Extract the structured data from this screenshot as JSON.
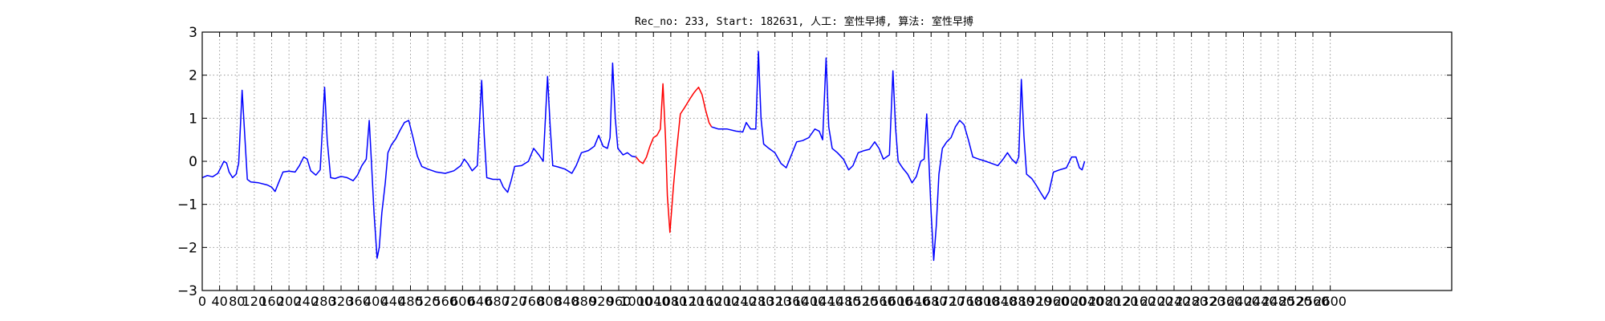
{
  "chart_data": {
    "type": "line",
    "title": "Rec_no: 233, Start: 182631, 人工: 室性早搏, 算法: 室性早搏",
    "xlabel": "",
    "ylabel": "",
    "xlim": [
      0,
      2880
    ],
    "ylim": [
      -3,
      3
    ],
    "yticks": [
      3,
      2,
      1,
      0,
      -1,
      -2,
      -3
    ],
    "ytick_labels": [
      "3",
      "2",
      "1",
      "0",
      "−1",
      "−2",
      "−3"
    ],
    "xticks": [
      0,
      40,
      80,
      120,
      160,
      200,
      240,
      280,
      320,
      360,
      400,
      440,
      480,
      520,
      560,
      600,
      640,
      680,
      720,
      760,
      800,
      840,
      880,
      920,
      960,
      1000,
      1040,
      1080,
      1120,
      1160,
      1200,
      1240,
      1280,
      1320,
      1360,
      1400,
      1440,
      1480,
      1520,
      1560,
      1600,
      1640,
      1680,
      1720,
      1760,
      1800,
      1840,
      1880,
      1920,
      1960,
      2000,
      2040,
      2080,
      2120,
      2160,
      2200,
      2240,
      2280,
      2320,
      2360,
      2400,
      2440,
      2480,
      2520,
      2560,
      2600
    ],
    "grid": true,
    "colors": {
      "normal": "#0000ff",
      "highlight": "#ff0000",
      "grid": "#999999"
    },
    "series": [
      {
        "values": [
          [
            0,
            -0.38
          ],
          [
            12,
            -0.33
          ],
          [
            24,
            -0.36
          ],
          [
            36,
            -0.28
          ],
          [
            44,
            -0.12
          ],
          [
            50,
            0.0
          ],
          [
            56,
            -0.04
          ],
          [
            62,
            -0.25
          ],
          [
            70,
            -0.38
          ],
          [
            78,
            -0.3
          ],
          [
            84,
            -0.05
          ],
          [
            92,
            1.65
          ],
          [
            98,
            0.6
          ],
          [
            104,
            -0.42
          ],
          [
            112,
            -0.48
          ],
          [
            130,
            -0.5
          ],
          [
            150,
            -0.55
          ],
          [
            160,
            -0.6
          ],
          [
            168,
            -0.7
          ],
          [
            176,
            -0.5
          ],
          [
            186,
            -0.25
          ],
          [
            200,
            -0.23
          ],
          [
            214,
            -0.25
          ],
          [
            224,
            -0.1
          ],
          [
            234,
            0.1
          ],
          [
            242,
            0.05
          ],
          [
            250,
            -0.22
          ],
          [
            262,
            -0.32
          ],
          [
            272,
            -0.2
          ],
          [
            282,
            1.72
          ],
          [
            288,
            0.5
          ],
          [
            296,
            -0.38
          ],
          [
            306,
            -0.4
          ],
          [
            320,
            -0.35
          ],
          [
            334,
            -0.38
          ],
          [
            348,
            -0.45
          ],
          [
            358,
            -0.32
          ],
          [
            368,
            -0.1
          ],
          [
            378,
            0.05
          ],
          [
            385,
            0.95
          ],
          [
            390,
            0.0
          ],
          [
            396,
            -1.2
          ],
          [
            403,
            -2.25
          ],
          [
            408,
            -2.0
          ],
          [
            414,
            -1.2
          ],
          [
            422,
            -0.5
          ],
          [
            428,
            0.2
          ],
          [
            436,
            0.38
          ],
          [
            446,
            0.52
          ],
          [
            456,
            0.72
          ],
          [
            466,
            0.9
          ],
          [
            476,
            0.95
          ],
          [
            486,
            0.55
          ],
          [
            496,
            0.12
          ],
          [
            506,
            -0.12
          ],
          [
            520,
            -0.18
          ],
          [
            540,
            -0.25
          ],
          [
            560,
            -0.28
          ],
          [
            580,
            -0.22
          ],
          [
            596,
            -0.1
          ],
          [
            604,
            0.05
          ],
          [
            612,
            -0.05
          ],
          [
            622,
            -0.22
          ],
          [
            634,
            -0.1
          ],
          [
            644,
            1.88
          ],
          [
            650,
            0.6
          ],
          [
            656,
            -0.38
          ],
          [
            670,
            -0.42
          ],
          [
            686,
            -0.42
          ],
          [
            694,
            -0.6
          ],
          [
            704,
            -0.72
          ],
          [
            712,
            -0.45
          ],
          [
            720,
            -0.12
          ],
          [
            736,
            -0.1
          ],
          [
            752,
            0.0
          ],
          [
            764,
            0.3
          ],
          [
            776,
            0.15
          ],
          [
            786,
            0.0
          ],
          [
            796,
            1.97
          ],
          [
            802,
            0.8
          ],
          [
            808,
            -0.1
          ],
          [
            820,
            -0.13
          ],
          [
            836,
            -0.18
          ],
          [
            852,
            -0.28
          ],
          [
            862,
            -0.1
          ],
          [
            874,
            0.2
          ],
          [
            890,
            0.25
          ],
          [
            904,
            0.35
          ],
          [
            914,
            0.6
          ],
          [
            924,
            0.35
          ],
          [
            934,
            0.3
          ],
          [
            940,
            0.55
          ],
          [
            946,
            2.28
          ],
          [
            952,
            1.0
          ],
          [
            958,
            0.3
          ],
          [
            970,
            0.15
          ],
          [
            980,
            0.2
          ],
          [
            990,
            0.12
          ],
          [
            1000,
            0.1
          ]
        ]
      },
      {
        "values": [
          [
            1000,
            0.1
          ],
          [
            1008,
            0.0
          ],
          [
            1016,
            -0.05
          ],
          [
            1024,
            0.1
          ],
          [
            1032,
            0.35
          ],
          [
            1040,
            0.55
          ],
          [
            1048,
            0.6
          ],
          [
            1056,
            0.75
          ],
          [
            1062,
            1.8
          ],
          [
            1068,
            0.5
          ],
          [
            1072,
            -0.8
          ],
          [
            1078,
            -1.65
          ],
          [
            1086,
            -0.6
          ],
          [
            1094,
            0.3
          ],
          [
            1102,
            1.1
          ],
          [
            1112,
            1.25
          ],
          [
            1124,
            1.45
          ],
          [
            1134,
            1.6
          ],
          [
            1144,
            1.72
          ],
          [
            1152,
            1.55
          ],
          [
            1160,
            1.2
          ],
          [
            1168,
            0.9
          ],
          [
            1174,
            0.8
          ]
        ]
      },
      {
        "values": [
          [
            1174,
            0.8
          ],
          [
            1190,
            0.75
          ],
          [
            1210,
            0.75
          ],
          [
            1230,
            0.7
          ],
          [
            1246,
            0.68
          ],
          [
            1254,
            0.9
          ],
          [
            1264,
            0.75
          ],
          [
            1276,
            0.75
          ],
          [
            1282,
            2.55
          ],
          [
            1288,
            1.0
          ],
          [
            1294,
            0.4
          ],
          [
            1306,
            0.3
          ],
          [
            1320,
            0.2
          ],
          [
            1334,
            -0.05
          ],
          [
            1346,
            -0.15
          ],
          [
            1358,
            0.15
          ],
          [
            1370,
            0.45
          ],
          [
            1384,
            0.48
          ],
          [
            1398,
            0.55
          ],
          [
            1412,
            0.75
          ],
          [
            1422,
            0.7
          ],
          [
            1430,
            0.5
          ],
          [
            1438,
            2.4
          ],
          [
            1444,
            0.8
          ],
          [
            1452,
            0.3
          ],
          [
            1464,
            0.2
          ],
          [
            1478,
            0.05
          ],
          [
            1490,
            -0.2
          ],
          [
            1500,
            -0.1
          ],
          [
            1512,
            0.2
          ],
          [
            1526,
            0.25
          ],
          [
            1538,
            0.28
          ],
          [
            1550,
            0.45
          ],
          [
            1560,
            0.3
          ],
          [
            1570,
            0.05
          ],
          [
            1584,
            0.15
          ],
          [
            1592,
            2.1
          ],
          [
            1598,
            0.8
          ],
          [
            1604,
            0.0
          ],
          [
            1614,
            -0.15
          ],
          [
            1626,
            -0.3
          ],
          [
            1636,
            -0.5
          ],
          [
            1646,
            -0.35
          ],
          [
            1656,
            0.0
          ],
          [
            1664,
            0.05
          ],
          [
            1670,
            1.1
          ],
          [
            1675,
            0.0
          ],
          [
            1680,
            -1.2
          ],
          [
            1686,
            -2.3
          ],
          [
            1692,
            -1.5
          ],
          [
            1698,
            -0.3
          ],
          [
            1706,
            0.3
          ],
          [
            1716,
            0.45
          ],
          [
            1726,
            0.55
          ],
          [
            1736,
            0.8
          ],
          [
            1746,
            0.95
          ],
          [
            1756,
            0.85
          ],
          [
            1766,
            0.5
          ],
          [
            1776,
            0.1
          ],
          [
            1790,
            0.05
          ],
          [
            1806,
            0.0
          ],
          [
            1820,
            -0.05
          ],
          [
            1834,
            -0.1
          ],
          [
            1846,
            0.05
          ],
          [
            1856,
            0.2
          ],
          [
            1866,
            0.05
          ],
          [
            1876,
            -0.05
          ],
          [
            1882,
            0.1
          ],
          [
            1888,
            1.9
          ],
          [
            1894,
            0.6
          ],
          [
            1900,
            -0.3
          ],
          [
            1912,
            -0.4
          ],
          [
            1922,
            -0.55
          ],
          [
            1932,
            -0.72
          ],
          [
            1942,
            -0.88
          ],
          [
            1952,
            -0.7
          ],
          [
            1962,
            -0.25
          ],
          [
            1976,
            -0.2
          ],
          [
            1992,
            -0.15
          ],
          [
            2004,
            0.1
          ],
          [
            2014,
            0.1
          ],
          [
            2022,
            -0.15
          ],
          [
            2028,
            -0.2
          ],
          [
            2034,
            0.0
          ]
        ]
      }
    ]
  }
}
